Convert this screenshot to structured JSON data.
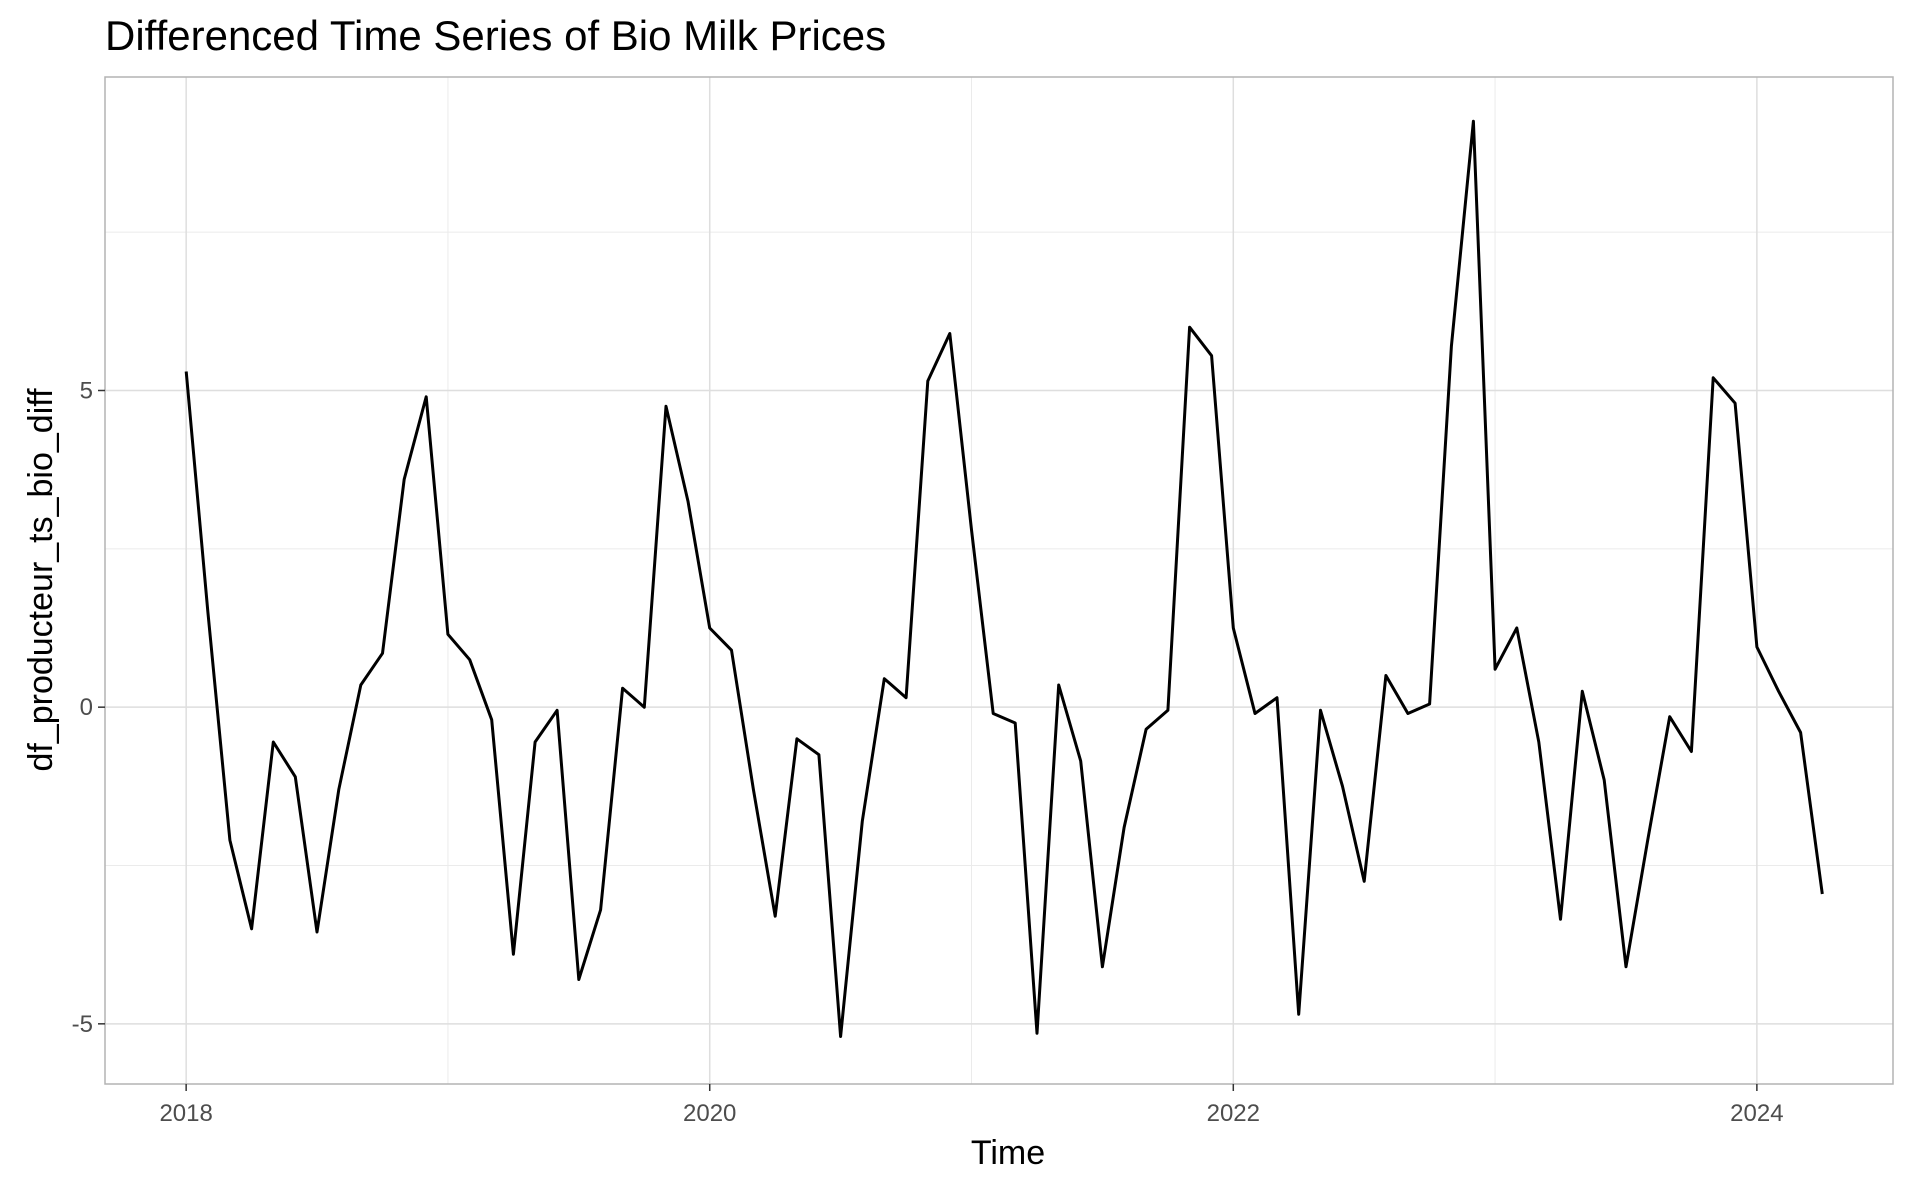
{
  "chart_data": {
    "type": "line",
    "title": "Differenced Time Series of Bio Milk Prices",
    "xlabel": "Time",
    "ylabel": "df_producteur_ts_bio_diff",
    "x_ticks": [
      "2018",
      "2020",
      "2022",
      "2024"
    ],
    "y_ticks": [
      "-5",
      "0",
      "5"
    ],
    "xlim": [
      2017.69,
      2024.52
    ],
    "ylim": [
      -5.95,
      9.95
    ],
    "grid": true,
    "legend": "none",
    "line_color": "#000000",
    "series": [
      {
        "x": [
          2018.0,
          2018.083,
          2018.167,
          2018.25,
          2018.333,
          2018.417,
          2018.5,
          2018.583,
          2018.667,
          2018.75,
          2018.833,
          2018.917,
          2019.0,
          2019.083,
          2019.167,
          2019.25,
          2019.333,
          2019.417,
          2019.5,
          2019.583,
          2019.667,
          2019.75,
          2019.833,
          2019.917,
          2020.0,
          2020.083,
          2020.167,
          2020.25,
          2020.333,
          2020.417,
          2020.5,
          2020.583,
          2020.667,
          2020.75,
          2020.833,
          2020.917,
          2021.0,
          2021.083,
          2021.167,
          2021.25,
          2021.333,
          2021.417,
          2021.5,
          2021.583,
          2021.667,
          2021.75,
          2021.833,
          2021.917,
          2022.0,
          2022.083,
          2022.167,
          2022.25,
          2022.333,
          2022.417,
          2022.5,
          2022.583,
          2022.667,
          2022.75,
          2022.833,
          2022.917,
          2023.0,
          2023.083,
          2023.167,
          2023.25,
          2023.333,
          2023.417,
          2023.5,
          2023.583,
          2023.667,
          2023.75,
          2023.833,
          2023.917,
          2024.0,
          2024.083,
          2024.167,
          2024.25
        ],
        "values": [
          5.3,
          1.5,
          -2.1,
          -3.5,
          -0.55,
          -1.1,
          -3.55,
          -1.3,
          0.35,
          0.85,
          3.6,
          4.9,
          1.15,
          0.75,
          -0.2,
          -3.9,
          -0.55,
          -0.05,
          -4.3,
          -3.2,
          0.3,
          0.0,
          4.75,
          3.25,
          1.25,
          0.9,
          -1.3,
          -3.3,
          -0.5,
          -0.75,
          -5.2,
          -1.8,
          0.45,
          0.15,
          5.15,
          5.9,
          2.8,
          -0.1,
          -0.25,
          -5.15,
          0.35,
          -0.85,
          -4.1,
          -1.9,
          -0.35,
          -0.05,
          6.0,
          5.55,
          1.25,
          -0.1,
          0.15,
          -4.85,
          -0.05,
          -1.25,
          -2.75,
          0.5,
          -0.1,
          0.05,
          5.7,
          9.25,
          0.6,
          1.25,
          -0.55,
          -3.35,
          0.25,
          -1.15,
          -4.1,
          -2.1,
          -0.15,
          -0.7,
          5.2,
          4.8,
          0.95,
          0.25,
          -0.4,
          -2.95
        ]
      }
    ]
  }
}
